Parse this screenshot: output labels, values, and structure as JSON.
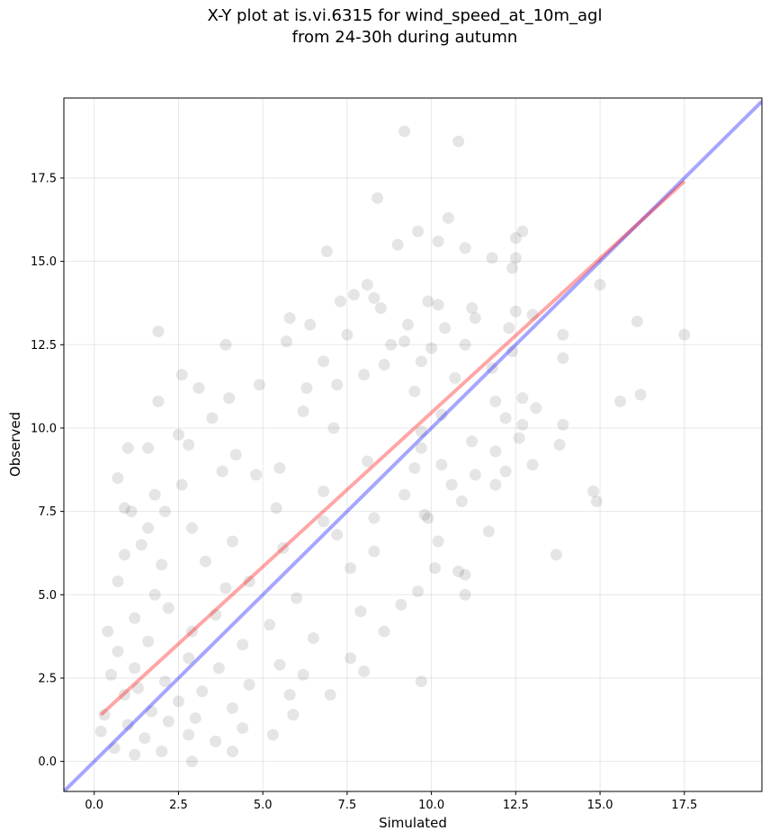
{
  "chart_data": {
    "type": "scatter",
    "title_line1": "X-Y plot at is.vi.6315 for wind_speed_at_10m_agl",
    "title_line2": "from 24-30h during autumn",
    "xlabel": "Simulated",
    "ylabel": "Observed",
    "xlim": [
      -0.9,
      19.8
    ],
    "ylim": [
      -0.9,
      19.9
    ],
    "xticks": [
      0.0,
      2.5,
      5.0,
      7.5,
      10.0,
      12.5,
      15.0,
      17.5
    ],
    "yticks": [
      0.0,
      2.5,
      5.0,
      7.5,
      10.0,
      12.5,
      15.0,
      17.5
    ],
    "xtick_labels": [
      "0.0",
      "2.5",
      "5.0",
      "7.5",
      "10.0",
      "12.5",
      "15.0",
      "17.5"
    ],
    "ytick_labels": [
      "0.0",
      "2.5",
      "5.0",
      "7.5",
      "10.0",
      "12.5",
      "15.0",
      "17.5"
    ],
    "grid": true,
    "point_color": "#000000",
    "fit_line": {
      "color": "#ff0000",
      "x": [
        0.2,
        17.5
      ],
      "y": [
        1.4,
        17.4
      ]
    },
    "identity_line": {
      "color": "#0000ff",
      "x": [
        -0.9,
        19.8
      ],
      "y": [
        -0.9,
        19.8
      ]
    },
    "points": [
      [
        9.2,
        18.9
      ],
      [
        10.8,
        18.6
      ],
      [
        8.4,
        16.9
      ],
      [
        10.5,
        16.3
      ],
      [
        12.7,
        15.9
      ],
      [
        9.6,
        15.9
      ],
      [
        12.5,
        15.7
      ],
      [
        10.2,
        15.6
      ],
      [
        9.0,
        15.5
      ],
      [
        11.0,
        15.4
      ],
      [
        6.9,
        15.3
      ],
      [
        12.5,
        15.1
      ],
      [
        11.8,
        15.1
      ],
      [
        12.4,
        14.8
      ],
      [
        15.0,
        14.3
      ],
      [
        8.1,
        14.3
      ],
      [
        7.7,
        14.0
      ],
      [
        8.3,
        13.9
      ],
      [
        9.9,
        13.8
      ],
      [
        7.3,
        13.8
      ],
      [
        10.2,
        13.7
      ],
      [
        8.5,
        13.6
      ],
      [
        11.2,
        13.6
      ],
      [
        12.5,
        13.5
      ],
      [
        13.0,
        13.4
      ],
      [
        11.3,
        13.3
      ],
      [
        5.8,
        13.3
      ],
      [
        16.1,
        13.2
      ],
      [
        6.4,
        13.1
      ],
      [
        9.3,
        13.1
      ],
      [
        10.4,
        13.0
      ],
      [
        12.3,
        13.0
      ],
      [
        1.9,
        12.9
      ],
      [
        7.5,
        12.8
      ],
      [
        13.9,
        12.8
      ],
      [
        17.5,
        12.8
      ],
      [
        5.7,
        12.6
      ],
      [
        9.2,
        12.6
      ],
      [
        11.0,
        12.5
      ],
      [
        3.9,
        12.5
      ],
      [
        8.8,
        12.5
      ],
      [
        10.0,
        12.4
      ],
      [
        12.4,
        12.3
      ],
      [
        6.8,
        12.0
      ],
      [
        9.7,
        12.0
      ],
      [
        13.9,
        12.1
      ],
      [
        8.6,
        11.9
      ],
      [
        11.8,
        11.8
      ],
      [
        2.6,
        11.6
      ],
      [
        8.0,
        11.6
      ],
      [
        10.7,
        11.5
      ],
      [
        7.2,
        11.3
      ],
      [
        4.9,
        11.3
      ],
      [
        6.3,
        11.2
      ],
      [
        3.1,
        11.2
      ],
      [
        9.5,
        11.1
      ],
      [
        16.2,
        11.0
      ],
      [
        4.0,
        10.9
      ],
      [
        12.7,
        10.9
      ],
      [
        11.9,
        10.8
      ],
      [
        15.6,
        10.8
      ],
      [
        1.9,
        10.8
      ],
      [
        13.1,
        10.6
      ],
      [
        6.2,
        10.5
      ],
      [
        10.3,
        10.4
      ],
      [
        12.2,
        10.3
      ],
      [
        3.5,
        10.3
      ],
      [
        13.9,
        10.1
      ],
      [
        12.7,
        10.1
      ],
      [
        7.1,
        10.0
      ],
      [
        9.7,
        9.9
      ],
      [
        2.5,
        9.8
      ],
      [
        12.6,
        9.7
      ],
      [
        11.2,
        9.6
      ],
      [
        1.6,
        9.4
      ],
      [
        9.7,
        9.4
      ],
      [
        13.8,
        9.5
      ],
      [
        2.8,
        9.5
      ],
      [
        4.2,
        9.2
      ],
      [
        11.9,
        9.3
      ],
      [
        1.0,
        9.4
      ],
      [
        8.1,
        9.0
      ],
      [
        10.3,
        8.9
      ],
      [
        13.0,
        8.9
      ],
      [
        5.5,
        8.8
      ],
      [
        9.5,
        8.8
      ],
      [
        3.8,
        8.7
      ],
      [
        11.3,
        8.6
      ],
      [
        12.2,
        8.7
      ],
      [
        0.7,
        8.5
      ],
      [
        4.8,
        8.6
      ],
      [
        10.6,
        8.3
      ],
      [
        11.9,
        8.3
      ],
      [
        2.6,
        8.3
      ],
      [
        6.8,
        8.1
      ],
      [
        14.8,
        8.1
      ],
      [
        9.2,
        8.0
      ],
      [
        1.8,
        8.0
      ],
      [
        14.9,
        7.8
      ],
      [
        10.9,
        7.8
      ],
      [
        5.4,
        7.6
      ],
      [
        0.9,
        7.6
      ],
      [
        2.1,
        7.5
      ],
      [
        9.8,
        7.4
      ],
      [
        1.1,
        7.5
      ],
      [
        8.3,
        7.3
      ],
      [
        9.9,
        7.3
      ],
      [
        6.8,
        7.2
      ],
      [
        2.9,
        7.0
      ],
      [
        1.6,
        7.0
      ],
      [
        11.7,
        6.9
      ],
      [
        7.2,
        6.8
      ],
      [
        4.1,
        6.6
      ],
      [
        1.4,
        6.5
      ],
      [
        10.2,
        6.6
      ],
      [
        5.6,
        6.4
      ],
      [
        8.3,
        6.3
      ],
      [
        13.7,
        6.2
      ],
      [
        0.9,
        6.2
      ],
      [
        3.3,
        6.0
      ],
      [
        10.1,
        5.8
      ],
      [
        7.6,
        5.8
      ],
      [
        2.0,
        5.9
      ],
      [
        10.8,
        5.7
      ],
      [
        11.0,
        5.6
      ],
      [
        4.6,
        5.4
      ],
      [
        0.7,
        5.4
      ],
      [
        3.9,
        5.2
      ],
      [
        9.6,
        5.1
      ],
      [
        1.8,
        5.0
      ],
      [
        11.0,
        5.0
      ],
      [
        6.0,
        4.9
      ],
      [
        9.1,
        4.7
      ],
      [
        2.2,
        4.6
      ],
      [
        7.9,
        4.5
      ],
      [
        3.6,
        4.4
      ],
      [
        1.2,
        4.3
      ],
      [
        5.2,
        4.1
      ],
      [
        8.6,
        3.9
      ],
      [
        2.9,
        3.9
      ],
      [
        0.4,
        3.9
      ],
      [
        6.5,
        3.7
      ],
      [
        1.6,
        3.6
      ],
      [
        4.4,
        3.5
      ],
      [
        0.7,
        3.3
      ],
      [
        7.6,
        3.1
      ],
      [
        2.8,
        3.1
      ],
      [
        5.5,
        2.9
      ],
      [
        1.2,
        2.8
      ],
      [
        3.7,
        2.8
      ],
      [
        8.0,
        2.7
      ],
      [
        6.2,
        2.6
      ],
      [
        0.5,
        2.6
      ],
      [
        9.7,
        2.4
      ],
      [
        2.1,
        2.4
      ],
      [
        4.6,
        2.3
      ],
      [
        1.3,
        2.2
      ],
      [
        3.2,
        2.1
      ],
      [
        7.0,
        2.0
      ],
      [
        0.9,
        2.0
      ],
      [
        5.8,
        2.0
      ],
      [
        2.5,
        1.8
      ],
      [
        4.1,
        1.6
      ],
      [
        1.7,
        1.5
      ],
      [
        0.3,
        1.4
      ],
      [
        3.0,
        1.3
      ],
      [
        5.9,
        1.4
      ],
      [
        2.2,
        1.2
      ],
      [
        1.0,
        1.1
      ],
      [
        4.4,
        1.0
      ],
      [
        0.2,
        0.9
      ],
      [
        2.8,
        0.8
      ],
      [
        5.3,
        0.8
      ],
      [
        1.5,
        0.7
      ],
      [
        3.6,
        0.6
      ],
      [
        0.6,
        0.4
      ],
      [
        2.0,
        0.3
      ],
      [
        4.1,
        0.3
      ],
      [
        1.2,
        0.2
      ],
      [
        2.9,
        0.0
      ]
    ]
  }
}
